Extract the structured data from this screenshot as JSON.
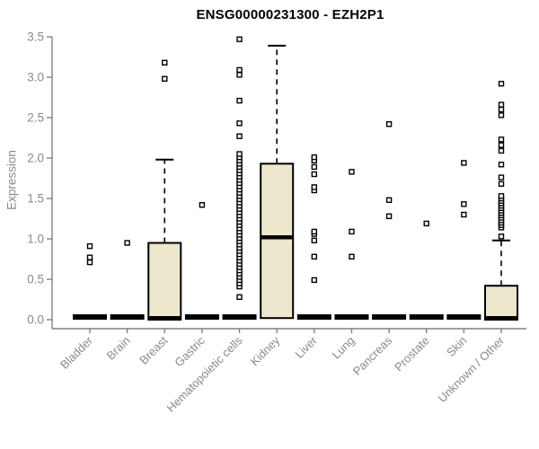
{
  "chart_data": {
    "type": "boxplot",
    "title": "ENSG00000231300 - EZH2P1",
    "ylabel": "Expression",
    "ylim": [
      0,
      3.5
    ],
    "ytick_labels": [
      "0.0",
      "0.5",
      "1.0",
      "1.5",
      "2.0",
      "2.5",
      "3.0",
      "3.5"
    ],
    "grid": false,
    "legend": "none",
    "colors": {
      "box_fill": "#ECE7CD",
      "box_border": "#000000",
      "axis": "#808080",
      "tick_label": "#8a8a8a",
      "title": "#000000",
      "outlier": "#000000"
    },
    "categories": [
      "Bladder",
      "Brain",
      "Breast",
      "Gastric",
      "Hematopoietic cells",
      "Kidney",
      "Liver",
      "Lung",
      "Pancreas",
      "Prostate",
      "Skin",
      "Unknown / Other"
    ],
    "boxes": [
      {
        "category": "Bladder",
        "q1": 0,
        "median": 0,
        "q3": 0,
        "whisker_low": 0,
        "whisker_high": 0,
        "outliers": [
          0.71,
          0.77,
          0.91
        ]
      },
      {
        "category": "Brain",
        "q1": 0,
        "median": 0,
        "q3": 0,
        "whisker_low": 0,
        "whisker_high": 0,
        "outliers": [
          0.95
        ]
      },
      {
        "category": "Breast",
        "q1": 0,
        "median": 0.02,
        "q3": 0.95,
        "whisker_low": 0,
        "whisker_high": 1.98,
        "outliers": [
          2.98,
          3.18
        ]
      },
      {
        "category": "Gastric",
        "q1": 0,
        "median": 0,
        "q3": 0,
        "whisker_low": 0,
        "whisker_high": 0,
        "outliers": [
          1.42
        ]
      },
      {
        "category": "Hematopoietic cells",
        "q1": 0,
        "median": 0,
        "q3": 0,
        "whisker_low": 0,
        "whisker_high": 0,
        "outliers": [
          0.28,
          0.41,
          0.45,
          0.49,
          0.53,
          0.57,
          0.61,
          0.65,
          0.69,
          0.73,
          0.77,
          0.81,
          0.85,
          0.89,
          0.93,
          0.97,
          1.01,
          1.05,
          1.09,
          1.13,
          1.17,
          1.21,
          1.25,
          1.29,
          1.33,
          1.37,
          1.41,
          1.45,
          1.49,
          1.53,
          1.57,
          1.61,
          1.65,
          1.69,
          1.73,
          1.77,
          1.81,
          1.85,
          1.89,
          1.93,
          1.97,
          2.01,
          2.05,
          2.27,
          2.43,
          2.71,
          3.03,
          3.09,
          3.47
        ]
      },
      {
        "category": "Kidney",
        "q1": 0.02,
        "median": 1.02,
        "q3": 1.93,
        "whisker_low": 0.02,
        "whisker_high": 3.39,
        "outliers": []
      },
      {
        "category": "Liver",
        "q1": 0,
        "median": 0,
        "q3": 0,
        "whisker_low": 0,
        "whisker_high": 0,
        "outliers": [
          0.49,
          0.78,
          0.98,
          1.06,
          1.09,
          1.6,
          1.64,
          1.8,
          1.89,
          1.97,
          2.01
        ]
      },
      {
        "category": "Lung",
        "q1": 0,
        "median": 0,
        "q3": 0,
        "whisker_low": 0,
        "whisker_high": 0,
        "outliers": [
          0.78,
          1.09,
          1.83
        ]
      },
      {
        "category": "Pancreas",
        "q1": 0,
        "median": 0,
        "q3": 0,
        "whisker_low": 0,
        "whisker_high": 0,
        "outliers": [
          1.28,
          1.48,
          2.42
        ]
      },
      {
        "category": "Prostate",
        "q1": 0,
        "median": 0,
        "q3": 0,
        "whisker_low": 0,
        "whisker_high": 0,
        "outliers": [
          1.19
        ]
      },
      {
        "category": "Skin",
        "q1": 0,
        "median": 0,
        "q3": 0,
        "whisker_low": 0,
        "whisker_high": 0,
        "outliers": [
          1.3,
          1.43,
          1.94
        ]
      },
      {
        "category": "Unknown / Other",
        "q1": 0,
        "median": 0.02,
        "q3": 0.42,
        "whisker_low": 0,
        "whisker_high": 0.98,
        "outliers": [
          1.03,
          1.14,
          1.17,
          1.2,
          1.23,
          1.26,
          1.29,
          1.32,
          1.35,
          1.38,
          1.41,
          1.44,
          1.47,
          1.5,
          1.53,
          1.68,
          1.76,
          1.92,
          2.09,
          2.16,
          2.23,
          2.53,
          2.6,
          2.66,
          2.92
        ]
      }
    ]
  }
}
